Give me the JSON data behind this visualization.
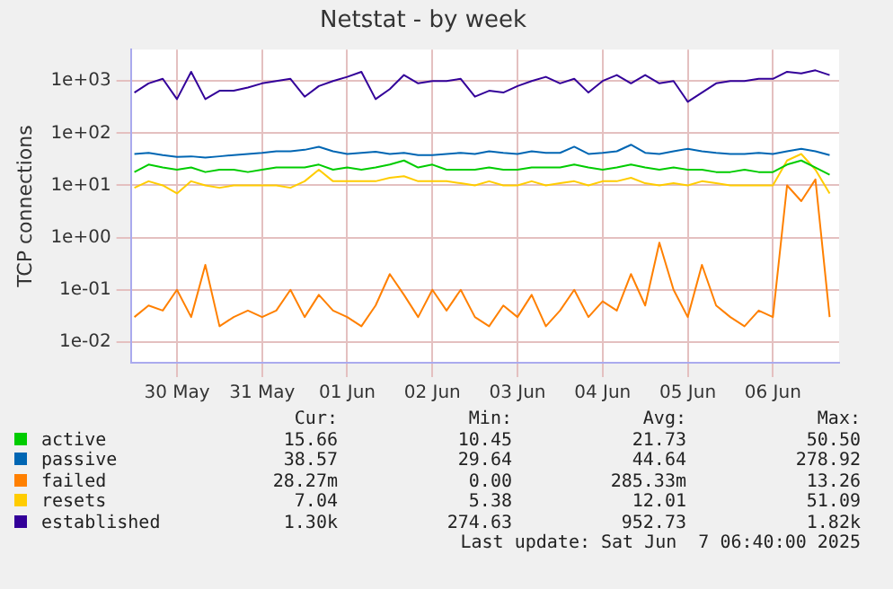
{
  "chart_data": {
    "type": "line",
    "title": "Netstat - by week",
    "ylabel": "TCP connections",
    "x": [
      "2025-05-30T00:00",
      "2025-05-30T04:00",
      "2025-05-30T08:00",
      "2025-05-30T12:00",
      "2025-05-30T16:00",
      "2025-05-30T20:00",
      "2025-05-31T00:00",
      "2025-05-31T04:00",
      "2025-05-31T08:00",
      "2025-05-31T12:00",
      "2025-05-31T16:00",
      "2025-05-31T20:00",
      "2025-06-01T00:00",
      "2025-06-01T04:00",
      "2025-06-01T08:00",
      "2025-06-01T12:00",
      "2025-06-01T16:00",
      "2025-06-01T20:00",
      "2025-06-02T00:00",
      "2025-06-02T04:00",
      "2025-06-02T08:00",
      "2025-06-02T12:00",
      "2025-06-02T16:00",
      "2025-06-02T20:00",
      "2025-06-03T00:00",
      "2025-06-03T04:00",
      "2025-06-03T08:00",
      "2025-06-03T12:00",
      "2025-06-03T16:00",
      "2025-06-03T20:00",
      "2025-06-04T00:00",
      "2025-06-04T04:00",
      "2025-06-04T08:00",
      "2025-06-04T12:00",
      "2025-06-04T16:00",
      "2025-06-04T20:00",
      "2025-06-05T00:00",
      "2025-06-05T04:00",
      "2025-06-05T08:00",
      "2025-06-05T12:00",
      "2025-06-05T16:00",
      "2025-06-05T20:00",
      "2025-06-06T00:00",
      "2025-06-06T04:00",
      "2025-06-06T08:00",
      "2025-06-06T12:00",
      "2025-06-06T16:00",
      "2025-06-06T20:00",
      "2025-06-07T00:00",
      "2025-06-07T04:00"
    ],
    "series": [
      {
        "name": "active",
        "color": "#00cc00",
        "values": [
          18,
          25,
          22,
          20,
          22,
          18,
          20,
          20,
          18,
          20,
          22,
          22,
          22,
          25,
          20,
          22,
          20,
          22,
          25,
          30,
          22,
          25,
          20,
          20,
          20,
          22,
          20,
          20,
          22,
          22,
          22,
          25,
          22,
          20,
          22,
          25,
          22,
          20,
          22,
          20,
          20,
          18,
          18,
          20,
          18,
          18,
          25,
          30,
          22,
          16
        ]
      },
      {
        "name": "passive",
        "color": "#0066b3",
        "values": [
          40,
          42,
          38,
          35,
          36,
          34,
          36,
          38,
          40,
          42,
          45,
          45,
          48,
          55,
          45,
          40,
          42,
          44,
          40,
          42,
          38,
          38,
          40,
          42,
          40,
          45,
          42,
          40,
          45,
          42,
          42,
          55,
          40,
          42,
          45,
          60,
          42,
          40,
          45,
          50,
          45,
          42,
          40,
          40,
          42,
          40,
          45,
          50,
          45,
          38
        ]
      },
      {
        "name": "failed",
        "color": "#ff8000",
        "values": [
          0.03,
          0.05,
          0.04,
          0.1,
          0.03,
          0.3,
          0.02,
          0.03,
          0.04,
          0.03,
          0.04,
          0.1,
          0.03,
          0.08,
          0.04,
          0.03,
          0.02,
          0.05,
          0.2,
          0.08,
          0.03,
          0.1,
          0.04,
          0.1,
          0.03,
          0.02,
          0.05,
          0.03,
          0.08,
          0.02,
          0.04,
          0.1,
          0.03,
          0.06,
          0.04,
          0.2,
          0.05,
          0.8,
          0.1,
          0.03,
          0.3,
          0.05,
          0.03,
          0.02,
          0.04,
          0.03,
          10,
          5,
          13,
          0.03
        ]
      },
      {
        "name": "resets",
        "color": "#ffcc00",
        "values": [
          9,
          12,
          10,
          7,
          12,
          10,
          9,
          10,
          10,
          10,
          10,
          9,
          12,
          20,
          12,
          12,
          12,
          12,
          14,
          15,
          12,
          12,
          12,
          11,
          10,
          12,
          10,
          10,
          12,
          10,
          11,
          12,
          10,
          12,
          12,
          14,
          11,
          10,
          11,
          10,
          12,
          11,
          10,
          10,
          10,
          10,
          30,
          40,
          20,
          7
        ]
      },
      {
        "name": "established",
        "color": "#330099",
        "values": [
          600,
          900,
          1100,
          450,
          1500,
          450,
          650,
          650,
          750,
          900,
          1000,
          1100,
          500,
          800,
          1000,
          1200,
          1500,
          450,
          700,
          1300,
          900,
          1000,
          1000,
          1100,
          500,
          650,
          600,
          800,
          1000,
          1200,
          900,
          1100,
          600,
          1000,
          1300,
          900,
          1300,
          900,
          1000,
          400,
          600,
          900,
          1000,
          1000,
          1100,
          1100,
          1500,
          1400,
          1600,
          1300
        ]
      }
    ],
    "log": "y",
    "ylim": [
      0.004,
      4000
    ],
    "yticks": [
      {
        "value": 0.01,
        "label": "1e-02"
      },
      {
        "value": 0.1,
        "label": "1e-01"
      },
      {
        "value": 1,
        "label": "1e+00"
      },
      {
        "value": 10,
        "label": "1e+01"
      },
      {
        "value": 100,
        "label": "1e+02"
      },
      {
        "value": 1000,
        "label": "1e+03"
      }
    ],
    "xlim": [
      "2025-05-29T23:00",
      "2025-06-07T06:40"
    ],
    "xticks": [
      {
        "value": "2025-05-30T12:00",
        "label": "30 May"
      },
      {
        "value": "2025-05-31T12:00",
        "label": "31 May"
      },
      {
        "value": "2025-06-01T12:00",
        "label": "01 Jun"
      },
      {
        "value": "2025-06-02T12:00",
        "label": "02 Jun"
      },
      {
        "value": "2025-06-03T12:00",
        "label": "03 Jun"
      },
      {
        "value": "2025-06-04T12:00",
        "label": "04 Jun"
      },
      {
        "value": "2025-06-05T12:00",
        "label": "05 Jun"
      },
      {
        "value": "2025-06-06T12:00",
        "label": "06 Jun"
      }
    ],
    "grid": true,
    "legend": "bottom",
    "marker": "none",
    "line_style": "solid",
    "annotations": [
      "Cur:",
      "Min:",
      "Avg:",
      "Max:",
      "15.66",
      "10.45",
      "21.73",
      "50.50",
      "38.57",
      "29.64",
      "44.64",
      "278.92",
      "28.27m",
      "0.00",
      "285.33m",
      "13.26",
      "7.04",
      "5.38",
      "12.01",
      "51.09",
      "1.30k",
      "274.63",
      "952.73",
      "1.82k",
      "Last update: Sat Jun  7 06:40:00 2025"
    ]
  }
}
